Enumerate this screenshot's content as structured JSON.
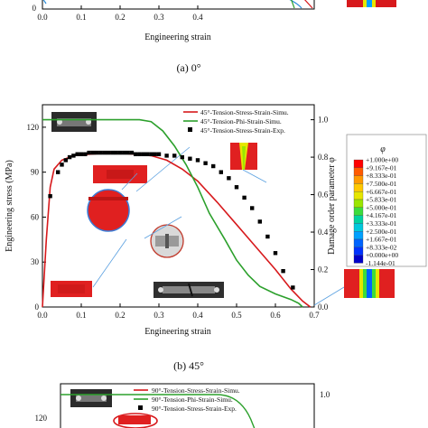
{
  "top_panel": {
    "xlabel": "Engineering strain",
    "xticks": [
      "0.0",
      "0.1",
      "0.2",
      "0.3",
      "0.4"
    ],
    "ytick_zero": "0",
    "caption": "(a) 0°"
  },
  "chart_data": {
    "type": "line",
    "caption": "(b) 45°",
    "xlabel": "Engineering strain",
    "ylabel": "Engineering stress (MPa)",
    "ylabel_right": "Damage order parameter φ",
    "xlim": [
      0.0,
      0.7
    ],
    "ylim": [
      0,
      135
    ],
    "ylim_right": [
      0.0,
      1.08
    ],
    "xticks": [
      "0.0",
      "0.1",
      "0.2",
      "0.3",
      "0.4",
      "0.5",
      "0.6",
      "0.7"
    ],
    "yticks": [
      "0",
      "30",
      "60",
      "90",
      "120"
    ],
    "yticks_right": [
      "0.0",
      "0.2",
      "0.4",
      "0.6",
      "0.8",
      "1.0"
    ],
    "series": [
      {
        "name": "45°-Tension-Stress-Strain-Simu.",
        "color": "#d7191c",
        "axis": "left",
        "x": [
          0.0,
          0.01,
          0.02,
          0.03,
          0.05,
          0.08,
          0.12,
          0.18,
          0.24,
          0.28,
          0.32,
          0.36,
          0.4,
          0.45,
          0.5,
          0.55,
          0.6,
          0.64,
          0.67,
          0.69
        ],
        "y": [
          0,
          45,
          80,
          92,
          98,
          101,
          102,
          103,
          102,
          101,
          98,
          92,
          84,
          70,
          55,
          40,
          25,
          12,
          4,
          0
        ]
      },
      {
        "name": "45°-Tension-Phi-Strain-Simu.",
        "color": "#2ca02c",
        "axis": "right",
        "x": [
          0.0,
          0.25,
          0.28,
          0.31,
          0.34,
          0.37,
          0.4,
          0.43,
          0.47,
          0.5,
          0.53,
          0.56,
          0.6,
          0.64,
          0.66,
          0.67
        ],
        "y": [
          1.0,
          1.0,
          0.99,
          0.94,
          0.86,
          0.76,
          0.64,
          0.5,
          0.36,
          0.25,
          0.17,
          0.11,
          0.07,
          0.04,
          0.02,
          0.0
        ]
      },
      {
        "name": "45°-Tension-Stress-Strain-Exp.",
        "color": "#000000",
        "axis": "left",
        "markers_only": true,
        "x": [
          0.02,
          0.04,
          0.05,
          0.06,
          0.07,
          0.08,
          0.09,
          0.1,
          0.11,
          0.12,
          0.13,
          0.14,
          0.15,
          0.16,
          0.17,
          0.18,
          0.19,
          0.2,
          0.21,
          0.22,
          0.23,
          0.24,
          0.25,
          0.26,
          0.27,
          0.28,
          0.29,
          0.3,
          0.32,
          0.34,
          0.36,
          0.38,
          0.4,
          0.42,
          0.44,
          0.46,
          0.48,
          0.5,
          0.52,
          0.54,
          0.56,
          0.58,
          0.6,
          0.62,
          0.645
        ],
        "y": [
          74,
          90,
          95,
          98,
          100,
          101,
          102,
          102,
          102,
          103,
          103,
          103,
          103,
          103,
          103,
          103,
          103,
          103,
          103,
          103,
          103,
          102,
          102,
          102,
          102,
          102,
          102,
          102,
          101,
          101,
          100,
          99,
          98,
          96,
          94,
          90,
          86,
          80,
          73,
          66,
          57,
          47,
          36,
          24,
          13
        ]
      }
    ],
    "colorbar": {
      "title": "φ",
      "labels": [
        "+1.000e+00",
        "+9.167e-01",
        "+8.333e-01",
        "+7.500e-01",
        "+6.667e-01",
        "+5.833e-01",
        "+5.000e-01",
        "+4.167e-01",
        "+3.333e-01",
        "+2.500e-01",
        "+1.667e-01",
        "+8.333e-02",
        "+0.000e+00",
        "-1.144e-01"
      ],
      "colors": [
        "#ff0000",
        "#ff5a00",
        "#ff9900",
        "#ffc800",
        "#e6e600",
        "#9be600",
        "#3cdc3c",
        "#00d2a0",
        "#00c8dc",
        "#00a0ff",
        "#0064ff",
        "#0032ff",
        "#0000c8"
      ]
    }
  },
  "bottom_panel": {
    "legend": [
      "90°-Tension-Stress-Strain-Simu.",
      "90°-Tension-Phi-Strain-Simu.",
      "90°-Tension-Stress-Strain-Exp."
    ],
    "ytick": "120",
    "ytick_right": "1.0"
  }
}
